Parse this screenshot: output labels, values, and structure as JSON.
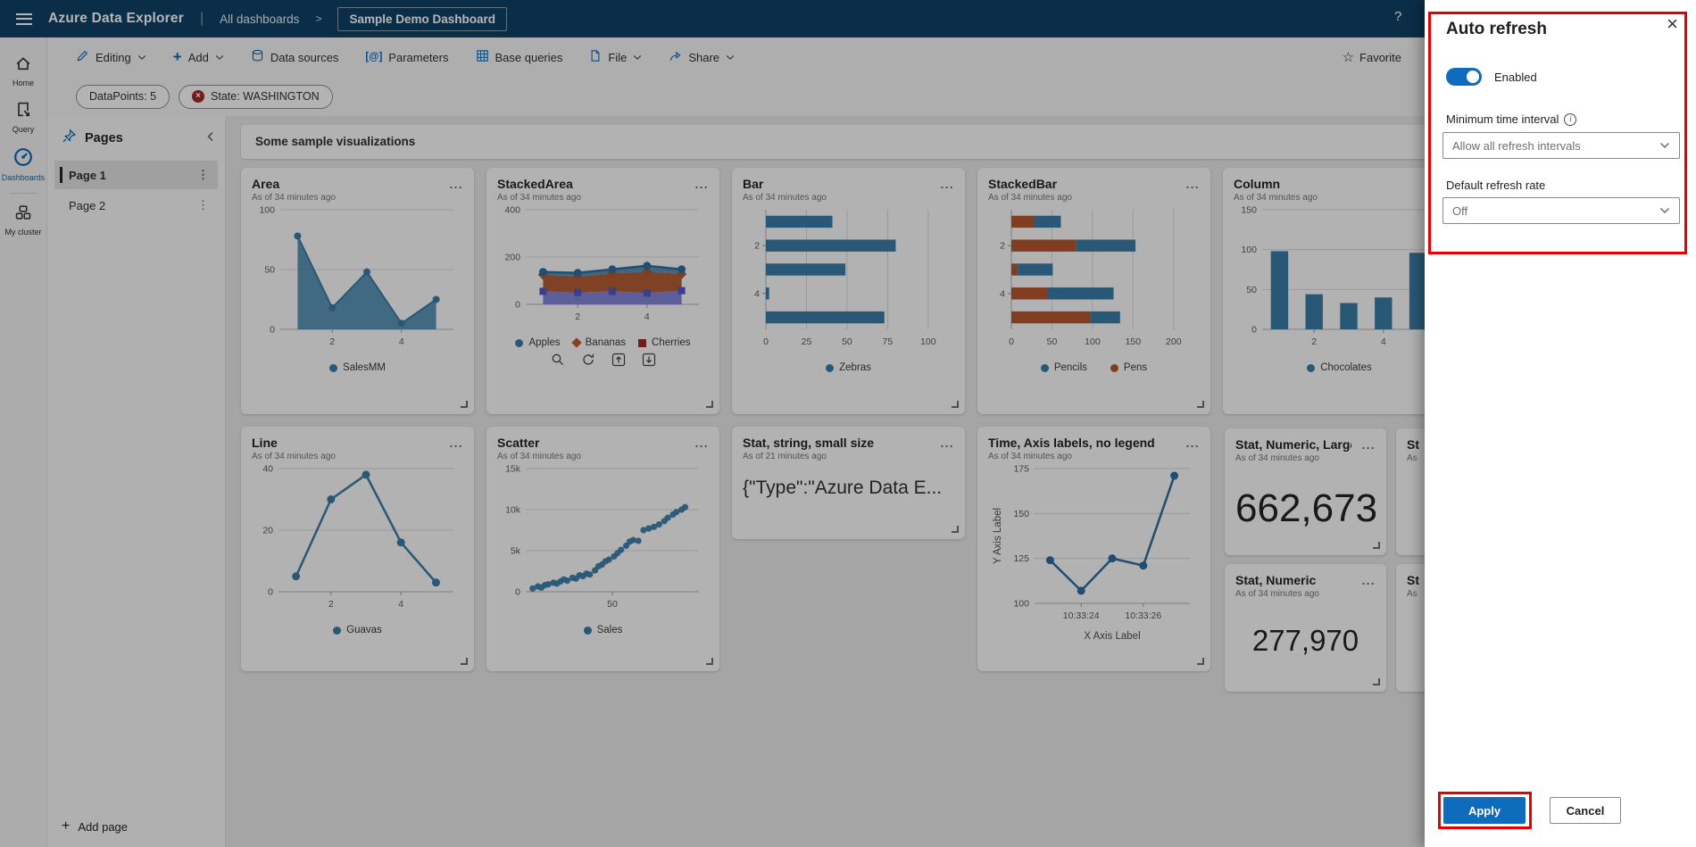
{
  "header": {
    "app_title": "Azure Data Explorer",
    "breadcrumb_root": "All dashboards",
    "breadcrumb_current": "Sample Demo Dashboard",
    "help": "?"
  },
  "icons": {
    "more": "...",
    "close": "×",
    "favorite_star": "☆",
    "kebab": "⋮",
    "chip_error": "×",
    "add_plus": "+"
  },
  "rail": {
    "items": [
      {
        "label": "Home"
      },
      {
        "label": "Query"
      },
      {
        "label": "Dashboards",
        "active": true
      },
      {
        "label": "My cluster"
      }
    ]
  },
  "toolbar": {
    "editing": "Editing",
    "add": "Add",
    "data_sources": "Data sources",
    "parameters": "Parameters",
    "base_queries": "Base queries",
    "file": "File",
    "share": "Share",
    "favorite": "Favorite"
  },
  "filters": {
    "chips": [
      {
        "label": "DataPoints: 5",
        "has_error": false
      },
      {
        "label": "State: WASHINGTON",
        "has_error": true
      }
    ]
  },
  "pages": {
    "title": "Pages",
    "items": [
      {
        "label": "Page 1",
        "selected": true
      },
      {
        "label": "Page 2",
        "selected": false
      }
    ],
    "add_label": "Add page"
  },
  "canvas": {
    "band_title": "Some sample visualizations"
  },
  "stats": {
    "stat_string": {
      "title": "Stat, string, small size",
      "subtitle": "As of 21 minutes ago",
      "value": "{\"Type\":\"Azure Data E..."
    },
    "stat_large": {
      "title": "Stat, Numeric, Large",
      "subtitle": "As of 34 minutes ago",
      "value": "662,673"
    },
    "stat_small": {
      "title": "Stat, Numeric",
      "subtitle": "As of 34 minutes ago",
      "value": "277,970"
    },
    "partial": {
      "title": "St",
      "subtitle": "As"
    }
  },
  "panel": {
    "title": "Auto refresh",
    "enabled_label": "Enabled",
    "toggle_on": true,
    "min_interval_label": "Minimum time interval",
    "min_interval_value": "Allow all refresh intervals",
    "refresh_rate_label": "Default refresh rate",
    "refresh_rate_value": "Off",
    "apply_label": "Apply",
    "cancel_label": "Cancel",
    "accent_color": "#0f6cbd",
    "annotation_color": "#e80000"
  },
  "chart_data": [
    {
      "type": "area",
      "title": "Area",
      "subtitle": "As of 34 minutes ago",
      "x": [
        1,
        2,
        3,
        4,
        5
      ],
      "xticks": [
        2,
        4
      ],
      "yticks": [
        0,
        50,
        100
      ],
      "ylim": [
        0,
        100
      ],
      "ml": 32,
      "series": [
        {
          "name": "SalesMM",
          "color": "#3a7ca8",
          "values": [
            78,
            18,
            48,
            5,
            25
          ]
        }
      ],
      "legend": [
        {
          "label": "SalesMM",
          "color": "#3a7ca8",
          "shape": "circle"
        }
      ]
    },
    {
      "type": "stackedarea",
      "title": "StackedArea",
      "subtitle": "As of 34 minutes ago",
      "x": [
        1,
        2,
        3,
        4,
        5
      ],
      "xticks": [
        2,
        4
      ],
      "yticks": [
        0,
        200,
        400
      ],
      "ylim": [
        0,
        400
      ],
      "ml": 32,
      "series": [
        {
          "name": "Apples",
          "color": "#3a7ca8",
          "values": [
            55,
            50,
            55,
            48,
            58
          ]
        },
        {
          "name": "Bananas",
          "color": "#c0562b",
          "values": [
            70,
            68,
            75,
            90,
            70
          ]
        },
        {
          "name": "Cherries",
          "color": "#a4262c",
          "values": [
            12,
            15,
            18,
            25,
            20
          ]
        }
      ],
      "legend": [
        {
          "label": "Apples",
          "color": "#3a7ca8",
          "shape": "circle"
        },
        {
          "label": "Bananas",
          "color": "#c0562b",
          "shape": "diamond"
        },
        {
          "label": "Cherries",
          "color": "#a4262c",
          "shape": "square"
        }
      ]
    },
    {
      "type": "barh",
      "title": "Bar",
      "subtitle": "As of 34 minutes ago",
      "xticks": [
        0,
        25,
        50,
        75,
        100
      ],
      "xlim": [
        0,
        110
      ],
      "yticks": [
        2,
        4
      ],
      "ml": 26,
      "series": [
        {
          "name": "Zebras",
          "color": "#3a7ca8",
          "values": [
            41,
            80,
            49,
            2,
            73
          ]
        }
      ],
      "legend": [
        {
          "label": "Zebras",
          "color": "#3a7ca8",
          "shape": "circle"
        }
      ]
    },
    {
      "type": "stackedbarh",
      "title": "StackedBar",
      "subtitle": "As of 34 minutes ago",
      "xticks": [
        0,
        50,
        100,
        150,
        200
      ],
      "xlim": [
        0,
        220
      ],
      "yticks": [
        2,
        4
      ],
      "ml": 26,
      "series": [
        {
          "name": "Pens",
          "color": "#b5562e",
          "values": [
            28,
            80,
            8,
            44,
            98
          ]
        },
        {
          "name": "Pencils",
          "color": "#3a7ca8",
          "values": [
            33,
            73,
            43,
            82,
            36
          ]
        }
      ],
      "legend": [
        {
          "label": "Pencils",
          "color": "#3a7ca8",
          "shape": "circle"
        },
        {
          "label": "Pens",
          "color": "#b5562e",
          "shape": "circle"
        }
      ]
    },
    {
      "type": "column",
      "title": "Column",
      "subtitle": "As of 34 minutes ago",
      "xticks": [
        2,
        4
      ],
      "yticks": [
        0,
        50,
        100,
        150
      ],
      "ylim": [
        0,
        150
      ],
      "ml": 32,
      "series": [
        {
          "name": "Chocolates",
          "color": "#3a7ca8",
          "values": [
            98,
            44,
            33,
            40,
            96
          ]
        }
      ],
      "legend": [
        {
          "label": "Chocolates",
          "color": "#3a7ca8",
          "shape": "circle"
        }
      ]
    },
    {
      "type": "line",
      "title": "Line",
      "subtitle": "As of 34 minutes ago",
      "xticks": [
        2,
        4
      ],
      "yticks": [
        0,
        20,
        40
      ],
      "ylim": [
        0,
        40
      ],
      "ml": 30,
      "series": [
        {
          "name": "Guavas",
          "color": "#3a7ca8",
          "values": [
            5,
            30,
            38,
            16,
            3
          ]
        }
      ],
      "legend": [
        {
          "label": "Guavas",
          "color": "#3a7ca8",
          "shape": "circle"
        }
      ]
    },
    {
      "type": "scatter",
      "title": "Scatter",
      "subtitle": "As of 34 minutes ago",
      "xticks": [
        50
      ],
      "xlim": [
        0,
        100
      ],
      "yticks": [
        0,
        5000,
        10000,
        15000
      ],
      "ytick_labels": [
        "0",
        "5k",
        "10k",
        "15k"
      ],
      "ylim": [
        0,
        15000
      ],
      "ml": 32,
      "series": [
        {
          "name": "Sales",
          "color": "#3a7ca8",
          "points": [
            [
              4,
              400
            ],
            [
              7,
              650
            ],
            [
              9,
              500
            ],
            [
              11,
              800
            ],
            [
              13,
              900
            ],
            [
              16,
              1100
            ],
            [
              18,
              1000
            ],
            [
              20,
              1250
            ],
            [
              22,
              1500
            ],
            [
              24,
              1350
            ],
            [
              27,
              1700
            ],
            [
              29,
              1600
            ],
            [
              31,
              2000
            ],
            [
              33,
              1900
            ],
            [
              35,
              2200
            ],
            [
              37,
              2100
            ],
            [
              40,
              2600
            ],
            [
              42,
              3100
            ],
            [
              44,
              3300
            ],
            [
              46,
              3700
            ],
            [
              48,
              3900
            ],
            [
              51,
              4300
            ],
            [
              53,
              4700
            ],
            [
              55,
              5100
            ],
            [
              58,
              5600
            ],
            [
              60,
              6100
            ],
            [
              62,
              6300
            ],
            [
              65,
              6200
            ],
            [
              68,
              7500
            ],
            [
              71,
              7700
            ],
            [
              74,
              7900
            ],
            [
              77,
              8200
            ],
            [
              80,
              8600
            ],
            [
              82,
              9000
            ],
            [
              85,
              9400
            ],
            [
              87,
              9700
            ],
            [
              90,
              10000
            ],
            [
              92,
              10300
            ]
          ]
        }
      ],
      "legend": [
        {
          "label": "Sales",
          "color": "#3a7ca8",
          "shape": "circle"
        }
      ]
    },
    {
      "type": "time",
      "title": "Time, Axis labels, no legend",
      "subtitle": "As of 34 minutes ago",
      "xtick_idx": [
        1,
        3
      ],
      "xtick_labels": [
        "10:33:24",
        "10:33:26"
      ],
      "yticks": [
        100,
        125,
        150,
        175
      ],
      "ylim": [
        100,
        175
      ],
      "ml": 52,
      "mb": 46,
      "ylabel": "Y Axis Label",
      "xlabel": "X Axis Label",
      "series": [
        {
          "name": "",
          "color": "#2e6da0",
          "values": [
            124,
            107,
            125,
            121,
            171
          ]
        }
      ]
    }
  ]
}
